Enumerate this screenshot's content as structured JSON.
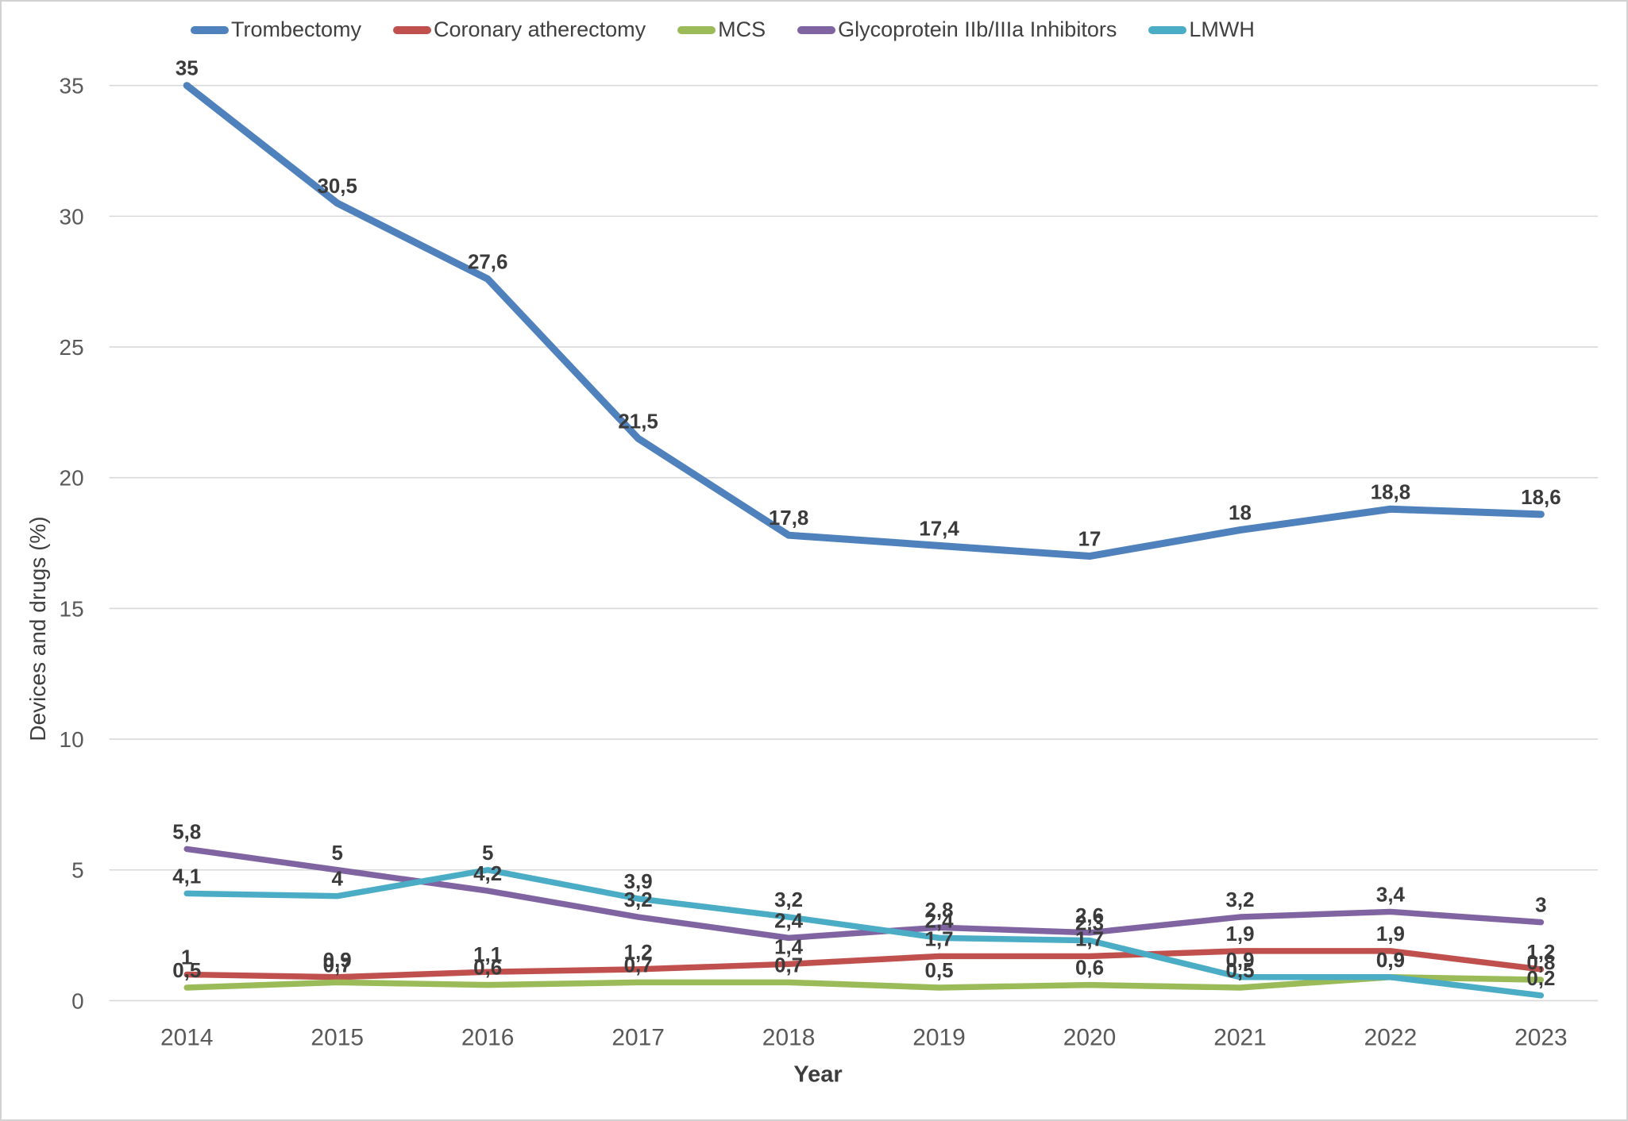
{
  "axes": {
    "y_title": "Devices and drugs (%)",
    "x_title": "Year"
  },
  "chart_data": {
    "type": "line",
    "title": "",
    "xlabel": "Year",
    "ylabel": "Devices and drugs (%)",
    "categories": [
      "2014",
      "2015",
      "2016",
      "2017",
      "2018",
      "2019",
      "2020",
      "2021",
      "2022",
      "2023"
    ],
    "series": [
      {
        "name": "Trombectomy",
        "color": "#4F81BD",
        "values": [
          35,
          30.5,
          27.6,
          21.5,
          17.8,
          17.4,
          17,
          18,
          18.8,
          18.6
        ],
        "labels": [
          "35",
          "30,5",
          "27,6",
          "21,5",
          "17,8",
          "17,4",
          "17",
          "18",
          "18,8",
          "18,6"
        ]
      },
      {
        "name": "Coronary atherectomy",
        "color": "#C0504D",
        "values": [
          1,
          0.9,
          1.1,
          1.2,
          1.4,
          1.7,
          1.7,
          1.9,
          1.9,
          1.2
        ],
        "labels": [
          "1",
          "0,9",
          "1,1",
          "1,2",
          "1,4",
          "1,7",
          "1,7",
          "1,9",
          "1,9",
          "1,2"
        ]
      },
      {
        "name": "MCS",
        "color": "#9BBB59",
        "values": [
          0.5,
          0.7,
          0.6,
          0.7,
          0.7,
          0.5,
          0.6,
          0.5,
          0.9,
          0.8
        ],
        "labels": [
          "0,5",
          "0,7",
          "0,6",
          "0,7",
          "0,7",
          "0,5",
          "0,6",
          "0,5",
          "0,9",
          "0,8"
        ]
      },
      {
        "name": "Glycoprotein IIb/IIIa Inhibitors",
        "color": "#8064A2",
        "values": [
          5.8,
          5,
          4.2,
          3.2,
          2.4,
          2.8,
          2.6,
          3.2,
          3.4,
          3
        ],
        "labels": [
          "5,8",
          "5",
          "4,2",
          "3,2",
          "2,4",
          "2,8",
          "2,6",
          "3,2",
          "3,4",
          "3"
        ]
      },
      {
        "name": "LMWH",
        "color": "#4BACC6",
        "values": [
          4.1,
          4,
          5,
          3.9,
          3.2,
          2.4,
          2.3,
          0.9,
          0.9,
          0.2
        ],
        "labels": [
          "4,1",
          "4",
          "5",
          "3,9",
          "3,2",
          "2,4",
          "2,3",
          "0,9",
          "0,9",
          "0,2"
        ]
      }
    ],
    "ylim": [
      0,
      35
    ],
    "yticks": [
      0,
      5,
      10,
      15,
      20,
      25,
      30,
      35
    ],
    "grid": "horizontal",
    "legend_position": "top",
    "decimal_separator": ","
  }
}
